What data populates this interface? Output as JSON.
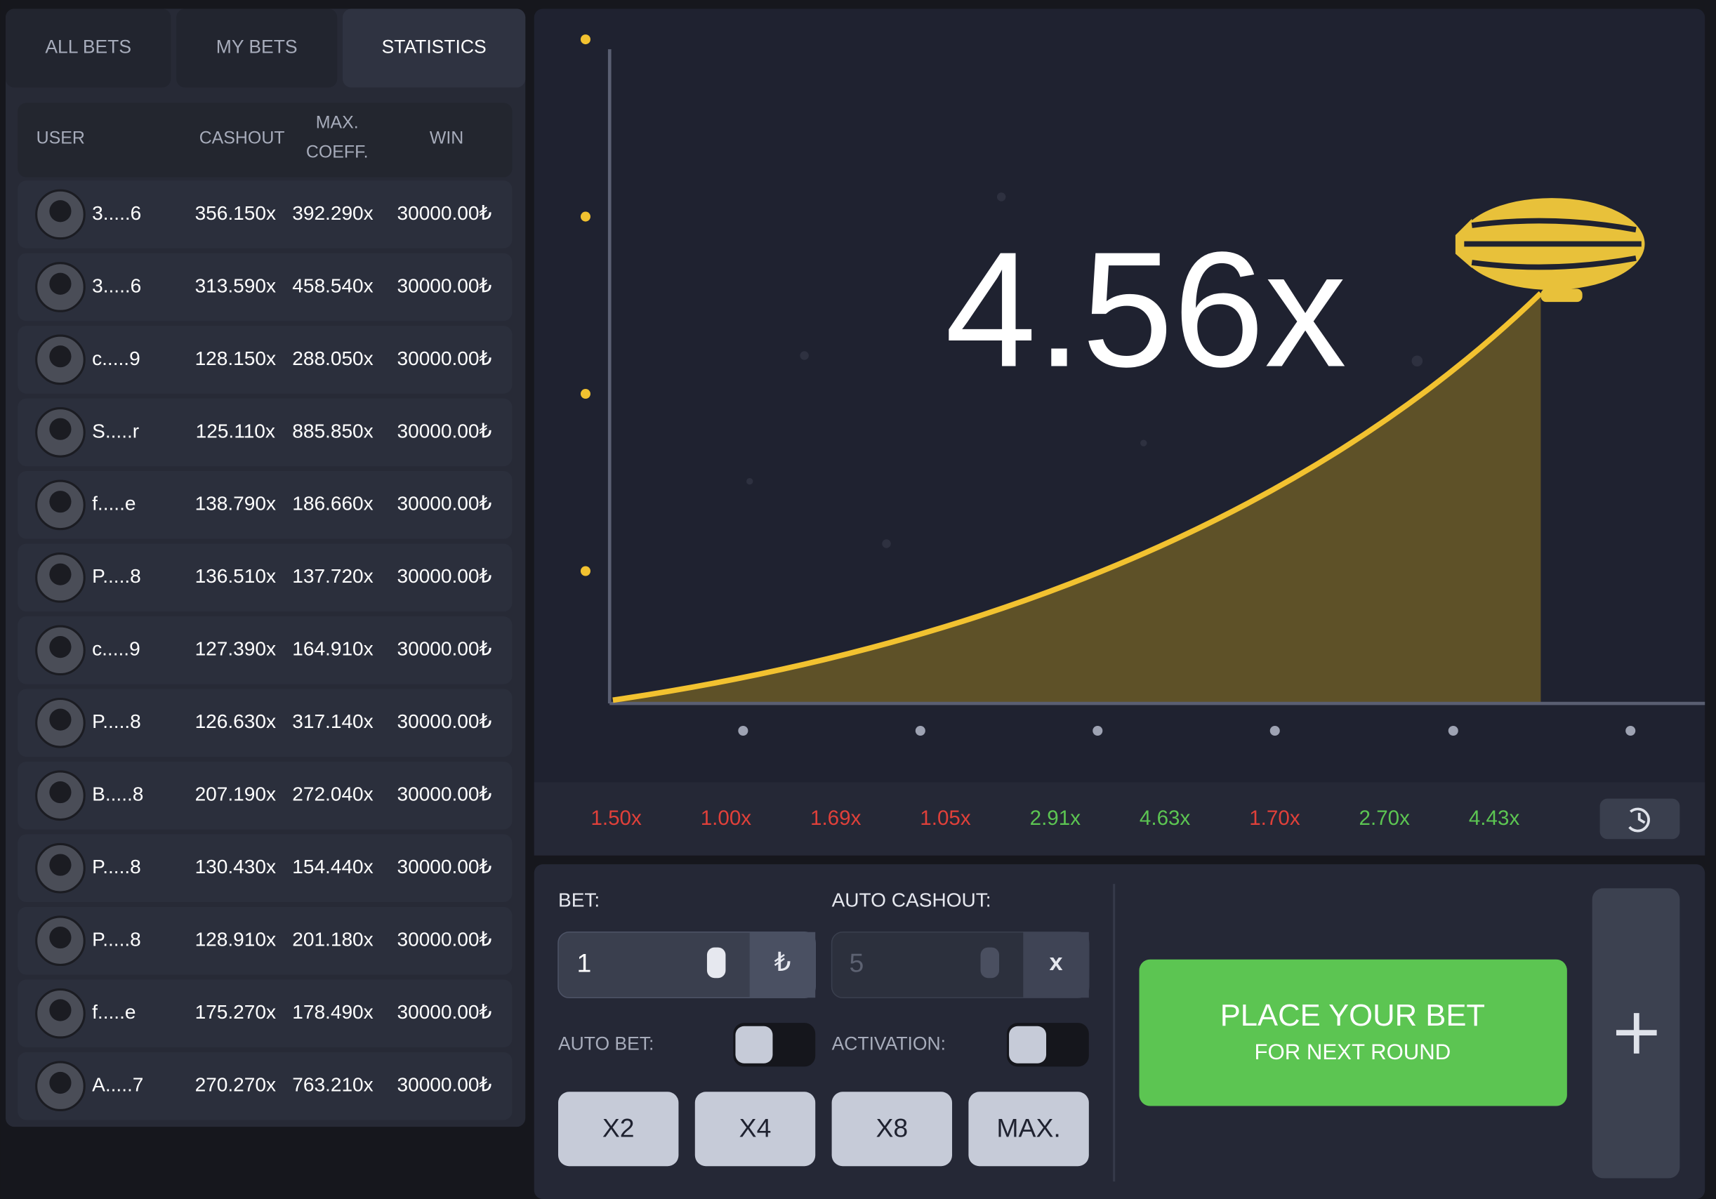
{
  "tabs": [
    "ALL BETS",
    "MY BETS",
    "STATISTICS"
  ],
  "table": {
    "headers": {
      "user": "USER",
      "cashout": "CASHOUT",
      "max_coeff": [
        "MAX.",
        "COEFF."
      ],
      "win": "WIN"
    },
    "rows": [
      [
        "3.....6",
        "356.150x",
        "392.290x",
        "30000.00₺"
      ],
      [
        "3.....6",
        "313.590x",
        "458.540x",
        "30000.00₺"
      ],
      [
        "c.....9",
        "128.150x",
        "288.050x",
        "30000.00₺"
      ],
      [
        "S.....r",
        "125.110x",
        "885.850x",
        "30000.00₺"
      ],
      [
        "f.....e",
        "138.790x",
        "186.660x",
        "30000.00₺"
      ],
      [
        "P.....8",
        "136.510x",
        "137.720x",
        "30000.00₺"
      ],
      [
        "c.....9",
        "127.390x",
        "164.910x",
        "30000.00₺"
      ],
      [
        "P.....8",
        "126.630x",
        "317.140x",
        "30000.00₺"
      ],
      [
        "B.....8",
        "207.190x",
        "272.040x",
        "30000.00₺"
      ],
      [
        "P.....8",
        "130.430x",
        "154.440x",
        "30000.00₺"
      ],
      [
        "P.....8",
        "128.910x",
        "201.180x",
        "30000.00₺"
      ],
      [
        "f.....e",
        "175.270x",
        "178.490x",
        "30000.00₺"
      ],
      [
        "A.....7",
        "270.270x",
        "763.210x",
        "30000.00₺"
      ]
    ]
  },
  "game": {
    "multiplier": "4.56x"
  },
  "history": [
    {
      "label": "1.50x",
      "color": "#e0403a"
    },
    {
      "label": "1.00x",
      "color": "#e0403a"
    },
    {
      "label": "1.69x",
      "color": "#e0403a"
    },
    {
      "label": "1.05x",
      "color": "#e0403a"
    },
    {
      "label": "2.91x",
      "color": "#5cc552"
    },
    {
      "label": "4.63x",
      "color": "#5cc552"
    },
    {
      "label": "1.70x",
      "color": "#e0403a"
    },
    {
      "label": "2.70x",
      "color": "#5cc552"
    },
    {
      "label": "4.43x",
      "color": "#5cc552"
    }
  ],
  "bet_panel": {
    "bet_label": "BET:",
    "bet_value": "1",
    "currency": "₺",
    "auto_cashout_label": "AUTO CASHOUT:",
    "auto_cashout_value": "5",
    "auto_cashout_unit": "x",
    "auto_bet_label": "AUTO BET:",
    "activation_label": "ACTIVATION:",
    "quick_buttons": [
      "X2",
      "X4",
      "X8",
      "MAX."
    ],
    "place_bet": {
      "title": "PLACE YOUR BET",
      "subtitle": "FOR NEXT ROUND"
    }
  }
}
